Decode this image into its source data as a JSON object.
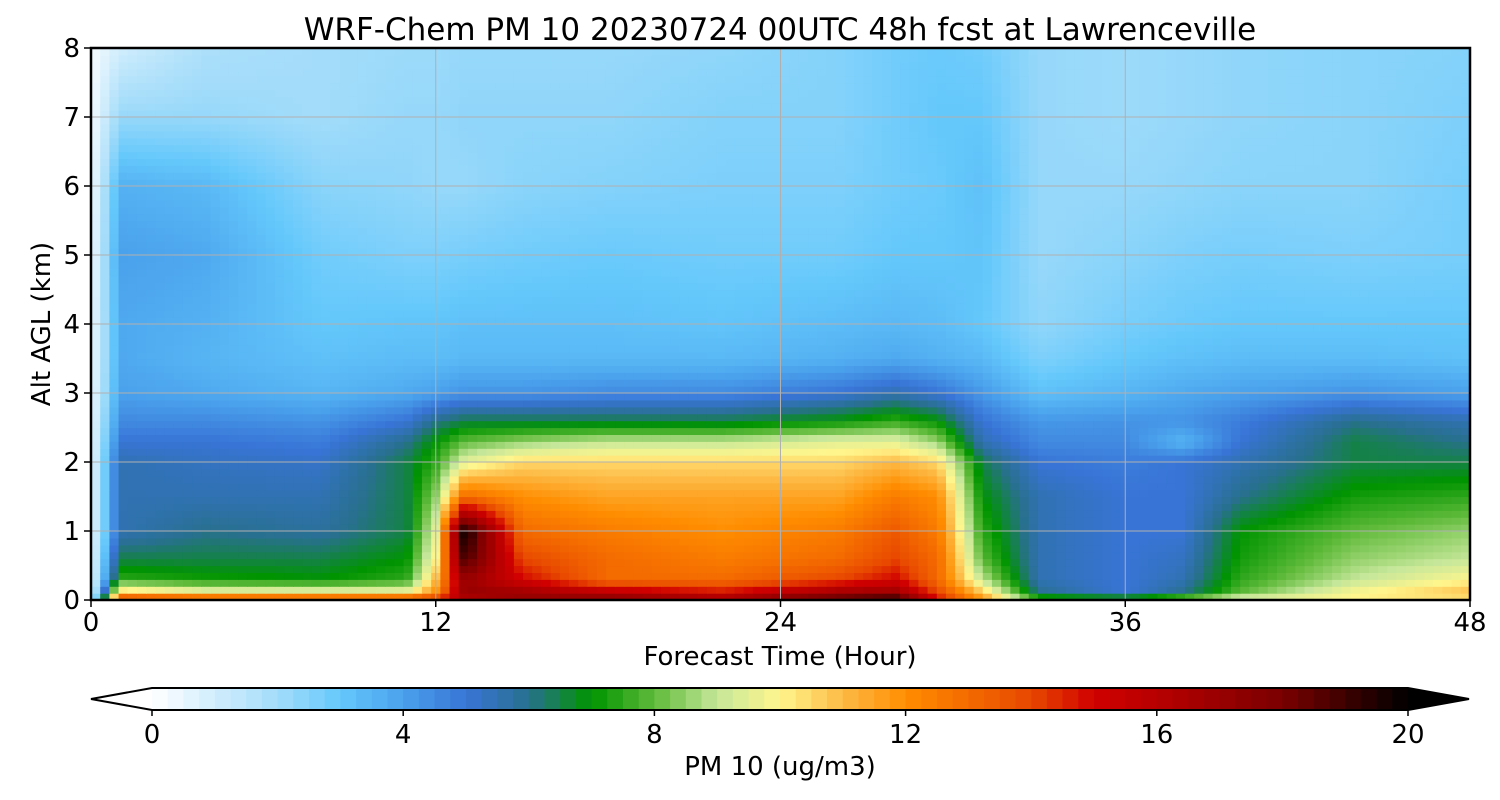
{
  "chart_data": {
    "type": "heatmap",
    "title": "WRF-Chem PM 10  20230724 00UTC 48h fcst at Lawrenceville",
    "xlabel": "Forecast Time (Hour)",
    "ylabel": "Alt AGL (km)",
    "xlim": [
      0,
      48
    ],
    "ylim": [
      0,
      8
    ],
    "x_ticks": [
      "0",
      "12",
      "24",
      "36",
      "48"
    ],
    "y_ticks": [
      "0",
      "1",
      "2",
      "3",
      "4",
      "5",
      "6",
      "7",
      "8"
    ],
    "grid": true,
    "colorbar": {
      "label": "PM 10  (ug/m3)",
      "range": [
        0,
        20
      ],
      "ticks": [
        "0",
        "4",
        "8",
        "12",
        "16",
        "20"
      ],
      "extend": "both",
      "stops": [
        {
          "v": 0,
          "color": "#ffffff"
        },
        {
          "v": 2,
          "color": "#a3dcfa"
        },
        {
          "v": 3,
          "color": "#64c8fb"
        },
        {
          "v": 4,
          "color": "#4aa1ec"
        },
        {
          "v": 5,
          "color": "#3874d6"
        },
        {
          "v": 6,
          "color": "#28708e"
        },
        {
          "v": 7,
          "color": "#009400"
        },
        {
          "v": 8,
          "color": "#5fba3a"
        },
        {
          "v": 9,
          "color": "#c6e79a"
        },
        {
          "v": 10,
          "color": "#fff68d"
        },
        {
          "v": 11,
          "color": "#fdb944"
        },
        {
          "v": 12,
          "color": "#ff8d00"
        },
        {
          "v": 14,
          "color": "#e84800"
        },
        {
          "v": 15,
          "color": "#d00000"
        },
        {
          "v": 16,
          "color": "#b70000"
        },
        {
          "v": 18,
          "color": "#7a0000"
        },
        {
          "v": 20,
          "color": "#000000"
        }
      ]
    },
    "times": [
      0,
      1,
      4,
      8,
      11,
      12,
      13,
      15,
      18,
      22,
      26,
      28,
      29.5,
      31,
      33,
      36,
      38,
      40,
      44,
      48
    ],
    "heights": [
      0,
      0.1,
      0.3,
      0.6,
      1.0,
      1.5,
      2.0,
      2.3,
      2.6,
      3.0,
      3.5,
      4.0,
      5.0,
      6.0,
      7.0,
      8.0
    ],
    "pm10": [
      [
        0.5,
        15,
        15,
        15,
        15,
        15,
        16,
        17,
        18,
        17,
        19,
        20,
        15,
        12,
        8,
        8,
        9,
        10,
        10,
        10
      ],
      [
        0.4,
        11,
        10,
        10,
        10,
        12,
        17,
        17,
        16,
        15,
        17,
        17,
        14,
        11,
        6,
        5,
        6,
        8,
        10,
        11
      ],
      [
        0.3,
        7.5,
        7.2,
        7,
        7.5,
        11,
        17,
        15,
        13,
        13,
        14,
        15,
        13,
        9,
        5.5,
        5,
        5.5,
        7.5,
        9,
        10
      ],
      [
        0.3,
        6.5,
        6.5,
        6.5,
        7,
        10,
        19,
        14,
        13,
        12.5,
        13,
        14,
        13,
        8,
        5.5,
        5,
        5.3,
        7.2,
        8.5,
        9
      ],
      [
        0.3,
        5.5,
        6,
        5.8,
        6.5,
        9.5,
        20,
        13,
        12.5,
        12,
        12.5,
        13.5,
        12.5,
        7.5,
        5.5,
        5,
        5,
        7,
        8,
        8.5
      ],
      [
        0.3,
        5.5,
        5.5,
        5.5,
        6.5,
        8.5,
        13,
        12,
        11.5,
        11.5,
        11.5,
        12.5,
        12,
        7,
        5.5,
        5,
        5,
        6,
        7.2,
        7.5
      ],
      [
        0.3,
        5.5,
        5.3,
        5.2,
        6.5,
        7.5,
        9.5,
        10.5,
        10.5,
        10.5,
        10.5,
        11,
        10.5,
        6.5,
        5,
        4.8,
        5,
        5.5,
        6.5,
        6.5
      ],
      [
        0.3,
        5,
        5,
        4.8,
        6,
        7,
        8,
        8.5,
        9,
        9,
        9.5,
        9.5,
        8.5,
        5.5,
        4.5,
        4.5,
        3.5,
        5,
        6.5,
        6
      ],
      [
        0.3,
        4.5,
        4.5,
        4.3,
        5,
        6,
        6.5,
        6.5,
        6.5,
        6.5,
        7,
        7.5,
        7,
        5,
        4.2,
        4.3,
        4.3,
        4.8,
        6,
        5.5
      ],
      [
        0.3,
        4,
        3.8,
        3.5,
        3.8,
        4,
        4.3,
        4.3,
        4.5,
        4.5,
        5,
        5.5,
        5,
        4.2,
        3.2,
        3.5,
        3.8,
        4,
        4.3,
        4
      ],
      [
        0.3,
        3.8,
        3.5,
        3.2,
        3.3,
        3.3,
        3.4,
        3.4,
        3.4,
        3.4,
        3.6,
        3.8,
        3.6,
        3.4,
        2.6,
        3,
        3.2,
        3.3,
        3.3,
        3.2
      ],
      [
        0.3,
        3.8,
        3.6,
        3,
        3.1,
        3.1,
        3.2,
        3.2,
        3.2,
        3.1,
        3.3,
        3.4,
        3.3,
        3,
        2.3,
        2.7,
        2.9,
        3,
        3,
        3
      ],
      [
        0.2,
        4,
        3.8,
        2.8,
        2.6,
        2.6,
        2.7,
        2.8,
        2.9,
        2.8,
        2.8,
        3,
        3,
        3.1,
        2.2,
        2.4,
        2.6,
        2.7,
        2.6,
        2.7
      ],
      [
        0.2,
        3.6,
        3.4,
        2.4,
        2.3,
        2.2,
        2.2,
        2.4,
        2.5,
        2.6,
        2.6,
        2.8,
        2.9,
        3.2,
        2.2,
        2.2,
        2.3,
        2.4,
        2.4,
        2.7
      ],
      [
        0.2,
        2.2,
        2.2,
        2,
        2.2,
        2.2,
        2.3,
        2.3,
        2.3,
        2.5,
        2.5,
        2.8,
        3,
        3,
        2.2,
        2.1,
        2.2,
        2.3,
        2.4,
        2.6
      ],
      [
        0.2,
        1,
        1.8,
        2,
        2.1,
        2.1,
        2.2,
        2.2,
        2.2,
        2.3,
        2.5,
        2.8,
        2.9,
        2.8,
        2.2,
        2.1,
        2.2,
        2.3,
        2.4,
        2.5
      ]
    ]
  }
}
